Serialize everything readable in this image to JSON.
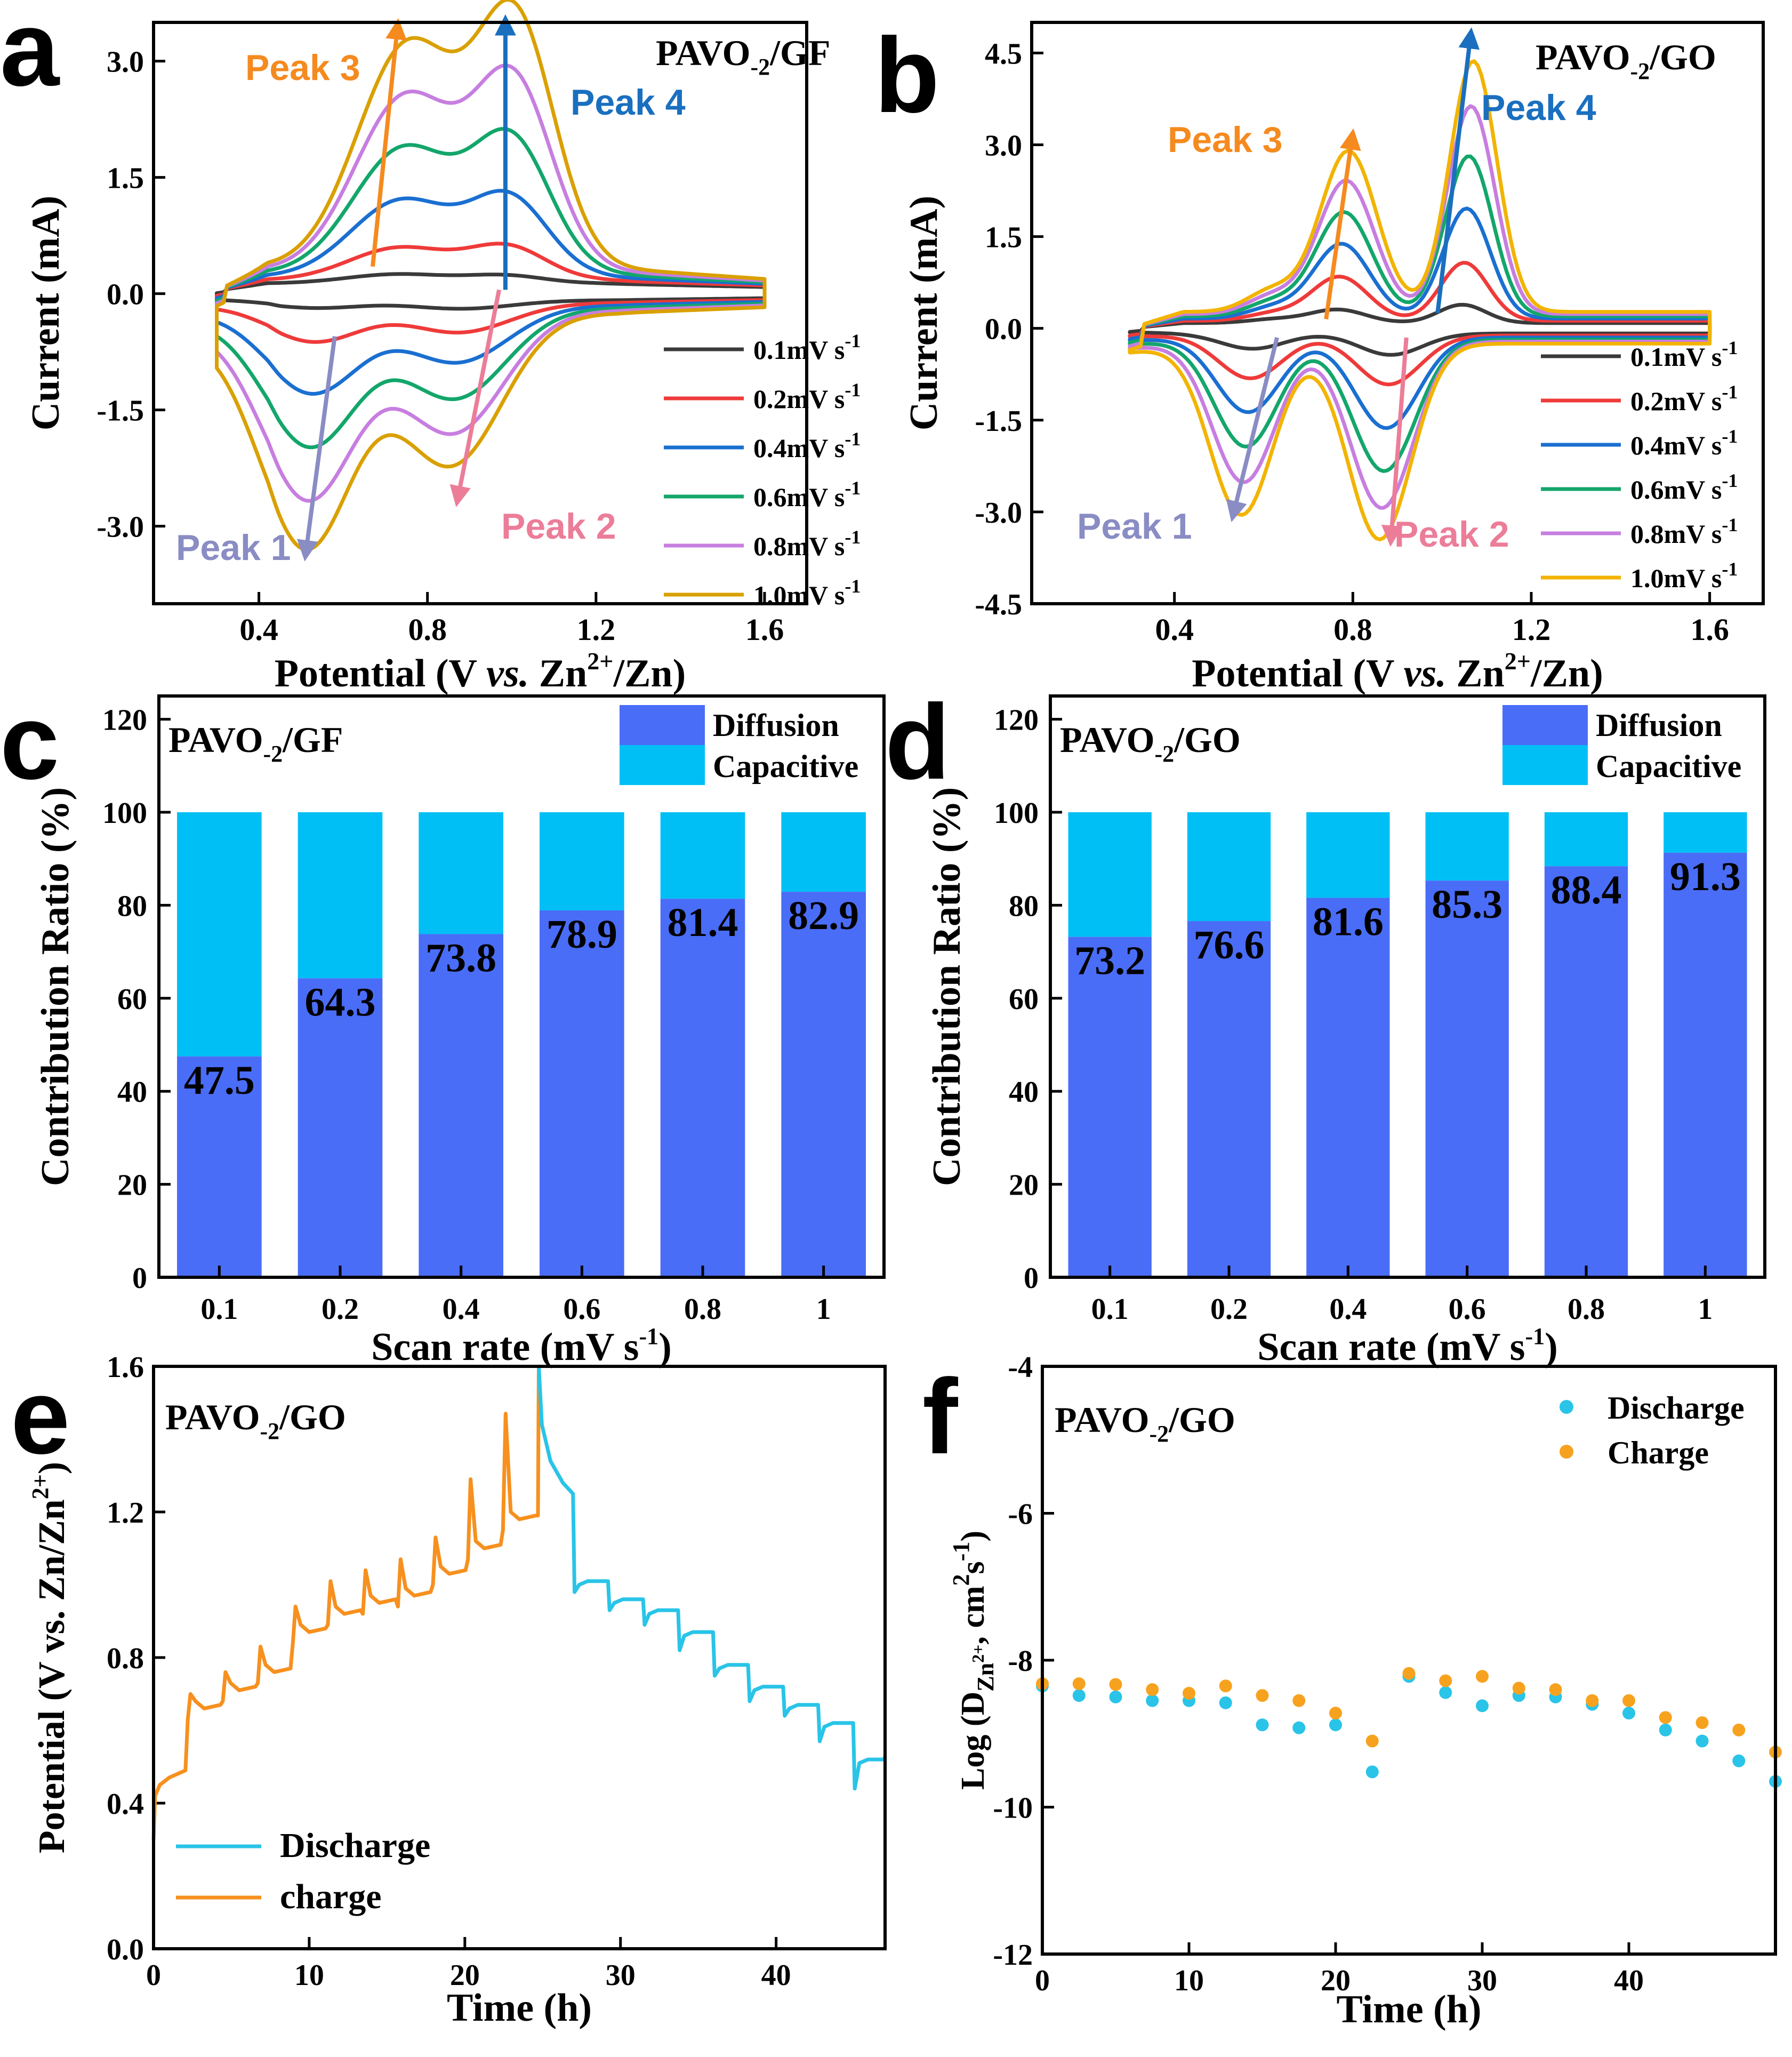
{
  "chart_data": [
    {
      "panel": "a",
      "type": "line",
      "title": "PAVO-2/GF",
      "title_main": "PAVO",
      "title_sub": "-2",
      "title_tail": "/GF",
      "xlabel_pre": "Potential (V ",
      "xlabel_it": "vs.",
      "xlabel_mid": " Zn",
      "xlabel_sup": "2+",
      "xlabel_post": "/Zn)",
      "ylabel": "Current (mA)",
      "xlim": [
        0.15,
        1.7
      ],
      "ylim": [
        -4.0,
        3.5
      ],
      "xticks": [
        "0.4",
        "0.8",
        "1.2",
        "1.6"
      ],
      "xtick_values": [
        0.4,
        0.8,
        1.2,
        1.6
      ],
      "yticks": [
        "-3.0",
        "-1.5",
        "0.0",
        "1.5",
        "3.0"
      ],
      "ytick_values": [
        -3.0,
        -1.5,
        0.0,
        1.5,
        3.0
      ],
      "series": [
        {
          "name": "0.1mV s-1",
          "label": "0.1mV s",
          "sup": "-1",
          "color": "#3a3a3a",
          "e": [
            0.0,
            0.0,
            0.0,
            0.0
          ],
          "a": [
            0.12,
            0.1,
            -0.1,
            -0.11
          ]
        },
        {
          "name": "0.2mV s-1",
          "label": "0.2mV s",
          "sup": "-1",
          "color": "#ef3a3a",
          "e": [
            0.005,
            0.005,
            -0.005,
            -0.005
          ],
          "a": [
            0.42,
            0.42,
            -0.5,
            -0.38
          ]
        },
        {
          "name": "0.4mV s-1",
          "label": "0.4mV s",
          "sup": "-1",
          "color": "#1a6fd1",
          "e": [
            0.01,
            0.01,
            -0.01,
            -0.01
          ],
          "a": [
            0.99,
            0.99,
            -1.13,
            -0.73
          ]
        },
        {
          "name": "0.6mV s-1",
          "label": "0.6mV s",
          "sup": "-1",
          "color": "#13a66b",
          "e": [
            0.015,
            0.015,
            -0.015,
            -0.015
          ],
          "a": [
            1.62,
            1.67,
            -1.78,
            -1.16
          ]
        },
        {
          "name": "0.8mV s-1",
          "label": "0.8mV s",
          "sup": "-1",
          "color": "#c77ee0",
          "e": [
            0.02,
            0.02,
            -0.02,
            -0.02
          ],
          "a": [
            2.25,
            2.37,
            -2.43,
            -1.57
          ]
        },
        {
          "name": "1.0mV s-1",
          "label": "1.0mV s",
          "sup": "-1",
          "color": "#d9a000",
          "e": [
            0.025,
            0.025,
            -0.025,
            -0.025
          ],
          "a": [
            2.88,
            3.1,
            -3.02,
            -1.95
          ]
        }
      ],
      "peaks": [
        {
          "label": "Peak 1",
          "color": "#8a8cc4",
          "from": [
            0.58,
            -0.55
          ],
          "to": [
            0.51,
            -3.4
          ]
        },
        {
          "label": "Peak 2",
          "color": "#ec7d99",
          "from": [
            0.97,
            0.05
          ],
          "to": [
            0.87,
            -2.7
          ]
        },
        {
          "label": "Peak 3",
          "color": "#f58a1f",
          "from": [
            0.67,
            0.35
          ],
          "to": [
            0.73,
            3.5
          ]
        },
        {
          "label": "Peak 4",
          "color": "#1a6fbf",
          "from": [
            0.985,
            0.05
          ],
          "to": [
            0.985,
            3.55
          ]
        }
      ],
      "peak_arrow_colors": [
        "#f58a1f",
        "#1a6fbf",
        "#8a8cc4",
        "#ec7d99"
      ]
    },
    {
      "panel": "b",
      "type": "line",
      "title": "PAVO-2/GO",
      "title_main": "PAVO",
      "title_sub": "-2",
      "title_tail": "/GO",
      "xlabel_pre": "Potential (V ",
      "xlabel_it": "vs.",
      "xlabel_mid": " Zn",
      "xlabel_sup": "2+",
      "xlabel_post": "/Zn)",
      "ylabel": "Current (mA)",
      "xlim": [
        0.08,
        1.72
      ],
      "ylim": [
        -4.5,
        5.0
      ],
      "xticks": [
        "0.4",
        "0.8",
        "1.2",
        "1.6"
      ],
      "xtick_values": [
        0.4,
        0.8,
        1.2,
        1.6
      ],
      "yticks": [
        "-4.5",
        "-3.0",
        "-1.5",
        "0.0",
        "1.5",
        "3.0",
        "4.5"
      ],
      "ytick_values": [
        -4.5,
        -3.0,
        -1.5,
        0.0,
        1.5,
        3.0,
        4.5
      ],
      "series": [
        {
          "name": "0.1mV s-1",
          "label": "0.1mV s",
          "sup": "-1",
          "color": "#3a3a3a",
          "e": [
            0.0,
            0.0,
            0.0,
            0.0
          ],
          "a": [
            0.22,
            0.3,
            -0.25,
            -0.35
          ]
        },
        {
          "name": "0.2mV s-1",
          "label": "0.2mV s",
          "sup": "-1",
          "color": "#ef3a3a",
          "e": [
            0.005,
            0.005,
            -0.005,
            -0.005
          ],
          "a": [
            0.72,
            0.95,
            -0.7,
            -0.8
          ]
        },
        {
          "name": "0.4mV s-1",
          "label": "0.4mV s",
          "sup": "-1",
          "color": "#1a6fd1",
          "e": [
            0.01,
            0.01,
            -0.01,
            -0.01
          ],
          "a": [
            1.22,
            1.8,
            -1.22,
            -1.48
          ]
        },
        {
          "name": "0.6mV s-1",
          "label": "0.6mV s",
          "sup": "-1",
          "color": "#13a66b",
          "e": [
            0.015,
            0.015,
            -0.015,
            -0.015
          ],
          "a": [
            1.7,
            2.62,
            -1.75,
            -2.15
          ]
        },
        {
          "name": "0.8mV s-1",
          "label": "0.8mV s",
          "sup": "-1",
          "color": "#c77ee0",
          "e": [
            0.02,
            0.02,
            -0.02,
            -0.02
          ],
          "a": [
            2.18,
            3.4,
            -2.3,
            -2.72
          ]
        },
        {
          "name": "1.0mV s-1",
          "label": "1.0mV s",
          "sup": "-1",
          "color": "#f2b400",
          "e": [
            0.025,
            0.025,
            -0.025,
            -0.025
          ],
          "a": [
            2.63,
            4.1,
            -2.8,
            -3.2
          ]
        }
      ],
      "peaks": [
        {
          "label": "Peak 1",
          "color": "#8a8cc4",
          "from": [
            0.63,
            -0.15
          ],
          "to": [
            0.53,
            -3.1
          ]
        },
        {
          "label": "Peak 2",
          "color": "#ec7d99",
          "from": [
            0.92,
            -0.15
          ],
          "to": [
            0.885,
            -3.5
          ]
        },
        {
          "label": "Peak 3",
          "color": "#f58a1f",
          "from": [
            0.74,
            0.15
          ],
          "to": [
            0.8,
            3.2
          ]
        },
        {
          "label": "Peak 4",
          "color": "#1a6fbf",
          "from": [
            0.99,
            0.25
          ],
          "to": [
            1.065,
            4.85
          ]
        }
      ],
      "peak_arrow_colors": [
        "#f58a1f",
        "#1a6fbf",
        "#8a8cc4",
        "#ec7d99"
      ]
    },
    {
      "panel": "c",
      "type": "bar",
      "title": "PAVO-2/GF",
      "title_main": "PAVO",
      "title_sub": "-2",
      "title_tail": "/GF",
      "xlabel": "Scan rate (mV s",
      "xlabel_sup": "-1",
      "xlabel_tail": ")",
      "ylabel": "Contribution Ratio  (%)",
      "ylim": [
        0,
        125
      ],
      "yticks": [
        "0",
        "20",
        "40",
        "60",
        "80",
        "100",
        "120"
      ],
      "ytick_values": [
        0,
        20,
        40,
        60,
        80,
        100,
        120
      ],
      "categories": [
        "0.1",
        "0.2",
        "0.4",
        "0.6",
        "0.8",
        "1"
      ],
      "diffusion": [
        47.5,
        64.3,
        73.8,
        78.9,
        81.4,
        82.9
      ],
      "value_labels": [
        "47.5",
        "64.3",
        "73.8",
        "78.9",
        "81.4",
        "82.9"
      ],
      "legend": [
        "Diffusion",
        "Capacitive"
      ],
      "colors": {
        "diffusion": "#4a6df7",
        "capacitive": "#00bff5"
      }
    },
    {
      "panel": "d",
      "type": "bar",
      "title": "PAVO-2/GO",
      "title_main": "PAVO",
      "title_sub": "-2",
      "title_tail": "/GO",
      "xlabel": "Scan rate (mV s",
      "xlabel_sup": "-1",
      "xlabel_tail": ")",
      "ylabel": "Contribution Ratio  (%)",
      "ylim": [
        0,
        125
      ],
      "yticks": [
        "0",
        "20",
        "40",
        "60",
        "80",
        "100",
        "120"
      ],
      "ytick_values": [
        0,
        20,
        40,
        60,
        80,
        100,
        120
      ],
      "categories": [
        "0.1",
        "0.2",
        "0.4",
        "0.6",
        "0.8",
        "1"
      ],
      "diffusion": [
        73.2,
        76.6,
        81.6,
        85.3,
        88.4,
        91.3
      ],
      "value_labels": [
        "73.2",
        "76.6",
        "81.6",
        "85.3",
        "88.4",
        "91.3"
      ],
      "legend": [
        "Diffusion",
        "Capacitive"
      ],
      "colors": {
        "diffusion": "#4a6df7",
        "capacitive": "#00bff5"
      }
    },
    {
      "panel": "e",
      "type": "line",
      "title": "PAVO-2/GO",
      "title_main": "PAVO",
      "title_sub": "-2",
      "title_tail": "/GO",
      "xlabel": "Time (h)",
      "ylabel": "Potential (V vs. Zn/Zn2+)",
      "ylabel_main": "Potential (V vs. Zn/Zn",
      "ylabel_sup": "2+",
      "ylabel_tail": ")",
      "xlim": [
        0,
        47
      ],
      "ylim": [
        0,
        1.6
      ],
      "xticks": [
        "0",
        "10",
        "20",
        "30",
        "40"
      ],
      "xtick_values": [
        0,
        10,
        20,
        30,
        40
      ],
      "yticks": [
        "0.0",
        "0.4",
        "0.8",
        "1.2",
        "1.6"
      ],
      "ytick_values": [
        0.0,
        0.4,
        0.8,
        1.2,
        1.6
      ],
      "legend": [
        "Discharge",
        "charge"
      ],
      "colors": {
        "discharge": "#29c4e8",
        "charge": "#f7901e"
      },
      "charge_steps": [
        {
          "t0": 0.0,
          "peak": 0.48,
          "rest": 0.48
        },
        {
          "t0": 2.25,
          "peak": 0.7,
          "rest": 0.66
        },
        {
          "t0": 4.5,
          "peak": 0.76,
          "rest": 0.71
        },
        {
          "t0": 6.75,
          "peak": 0.83,
          "rest": 0.76
        },
        {
          "t0": 9.0,
          "peak": 0.94,
          "rest": 0.87
        },
        {
          "t0": 11.25,
          "peak": 1.01,
          "rest": 0.92
        },
        {
          "t0": 13.5,
          "peak": 1.04,
          "rest": 0.95
        },
        {
          "t0": 15.75,
          "peak": 1.07,
          "rest": 0.97
        },
        {
          "t0": 18.0,
          "peak": 1.13,
          "rest": 1.03
        },
        {
          "t0": 20.25,
          "peak": 1.29,
          "rest": 1.1
        },
        {
          "t0": 22.5,
          "peak": 1.47,
          "rest": 1.18
        }
      ],
      "charge_end": {
        "t": 24.75,
        "peak": 1.6
      },
      "discharge_steps": [
        {
          "t0": 24.75,
          "start": 1.6,
          "rest": 1.25
        },
        {
          "t0": 27.0,
          "start": 0.98,
          "rest": 1.01
        },
        {
          "t0": 29.25,
          "start": 0.93,
          "rest": 0.96
        },
        {
          "t0": 31.5,
          "start": 0.89,
          "rest": 0.93
        },
        {
          "t0": 33.75,
          "start": 0.82,
          "rest": 0.87
        },
        {
          "t0": 36.0,
          "start": 0.75,
          "rest": 0.78
        },
        {
          "t0": 38.25,
          "start": 0.68,
          "rest": 0.72
        },
        {
          "t0": 40.5,
          "start": 0.64,
          "rest": 0.67
        },
        {
          "t0": 42.75,
          "start": 0.57,
          "rest": 0.62
        },
        {
          "t0": 45.0,
          "start": 0.44,
          "rest": 0.52
        }
      ],
      "discharge_end": {
        "t": 47.0,
        "v": 0.53
      }
    },
    {
      "panel": "f",
      "type": "scatter",
      "title": "PAVO-2/GO",
      "title_main": "PAVO",
      "title_sub": "-2",
      "title_tail": "/GO",
      "xlabel": "Time (h)",
      "ylabel": "Log (DZn2+, cm2s-1)",
      "xlim": [
        0,
        50
      ],
      "ylim": [
        -12,
        -4
      ],
      "xticks": [
        "0",
        "10",
        "20",
        "30",
        "40"
      ],
      "xtick_values": [
        0,
        10,
        20,
        30,
        40
      ],
      "yticks": [
        "-12",
        "-10",
        "-8",
        "-6",
        "-4"
      ],
      "ytick_values": [
        -12,
        -10,
        -8,
        -6,
        -4
      ],
      "legend": [
        "Discharge",
        "Charge"
      ],
      "colors": {
        "discharge": "#29c4e8",
        "charge": "#f7a21e"
      },
      "discharge_x": [
        0,
        2.5,
        5,
        7.5,
        10,
        12.5,
        15,
        17.5,
        20,
        22.5,
        25,
        27.5,
        30,
        32.5,
        35,
        37.5,
        40,
        42.5,
        45,
        47.5,
        50
      ],
      "discharge_y": [
        -8.35,
        -8.48,
        -8.5,
        -8.55,
        -8.55,
        -8.58,
        -8.88,
        -8.92,
        -8.88,
        -9.52,
        -8.22,
        -8.44,
        -8.62,
        -8.48,
        -8.5,
        -8.6,
        -8.72,
        -8.95,
        -9.1,
        -9.37,
        -9.65
      ],
      "charge_x": [
        0,
        2.5,
        5,
        7.5,
        10,
        12.5,
        15,
        17.5,
        20,
        22.5,
        25,
        27.5,
        30,
        32.5,
        35,
        37.5,
        40,
        42.5,
        45,
        47.5,
        50
      ],
      "charge_y": [
        -8.32,
        -8.32,
        -8.33,
        -8.4,
        -8.45,
        -8.35,
        -8.48,
        -8.55,
        -8.72,
        -9.1,
        -8.18,
        -8.28,
        -8.22,
        -8.38,
        -8.4,
        -8.55,
        -8.55,
        -8.78,
        -8.85,
        -8.95,
        -9.25
      ]
    }
  ],
  "panel_letters": [
    "a",
    "b",
    "c",
    "d",
    "e",
    "f"
  ],
  "text": {
    "a_axis_x": "Potential (V vs. Zn2+/Zn)",
    "f_ylabel_log": "Log (D",
    "f_ylabel_sub": "Zn",
    "f_ylabel_subsup": "2+",
    "f_ylabel_mid": ", cm",
    "f_ylabel_sup2": "2",
    "f_ylabel_s": "s",
    "f_ylabel_sup3": "-1",
    "f_ylabel_close": ")"
  }
}
